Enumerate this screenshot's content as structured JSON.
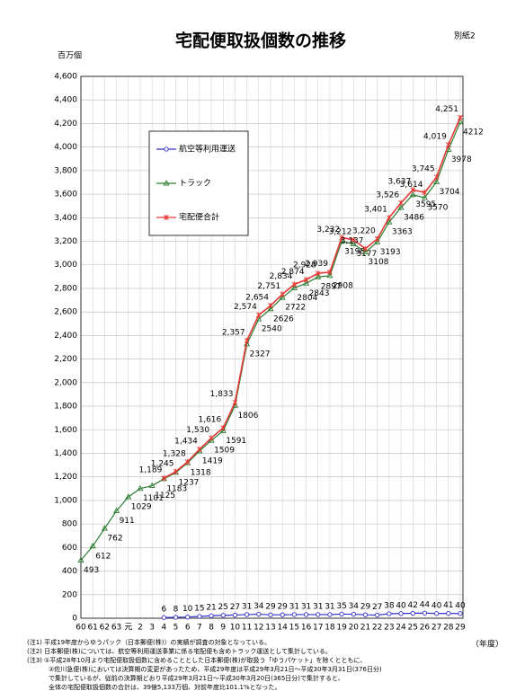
{
  "chart_data": {
    "type": "line",
    "title": "宅配便取扱個数の推移",
    "page_label": "別紙2",
    "y_axis_label": "百万個",
    "x_axis_label": "（年度）",
    "categories": [
      "60",
      "61",
      "62",
      "63",
      "元",
      "2",
      "3",
      "4",
      "5",
      "6",
      "7",
      "8",
      "9",
      "10",
      "11",
      "12",
      "13",
      "14",
      "15",
      "16",
      "17",
      "18",
      "19",
      "20",
      "21",
      "22",
      "23",
      "24",
      "25",
      "26",
      "27",
      "28",
      "29"
    ],
    "ylim": [
      0,
      4600
    ],
    "yticks": [
      0,
      200,
      400,
      600,
      800,
      {
        "value": 1000,
        "label": "1,000"
      },
      {
        "value": 1200,
        "label": "1,200"
      },
      {
        "value": 1400,
        "label": "1,400"
      },
      {
        "value": 1600,
        "label": "1,600"
      },
      {
        "value": 1800,
        "label": "1,800"
      },
      {
        "value": 2000,
        "label": "2,000"
      },
      {
        "value": 2200,
        "label": "2,200"
      },
      {
        "value": 2400,
        "label": "2,400"
      },
      {
        "value": 2600,
        "label": "2,600"
      },
      {
        "value": 2800,
        "label": "2,800"
      },
      {
        "value": 3000,
        "label": "3,000"
      },
      {
        "value": 3200,
        "label": "3,200"
      },
      {
        "value": 3400,
        "label": "3,400"
      },
      {
        "value": 3600,
        "label": "3,600"
      },
      {
        "value": 3800,
        "label": "3,800"
      },
      {
        "value": 4000,
        "label": "4,000"
      },
      {
        "value": 4200,
        "label": "4,200"
      },
      {
        "value": 4400,
        "label": "4,400"
      },
      {
        "value": 4600,
        "label": "4,600"
      }
    ],
    "grid": true,
    "legend_position": "upper left",
    "series": [
      {
        "name": "航空等利用運送",
        "color": "#3333cc",
        "marker": "circle",
        "values": [
          null,
          null,
          null,
          null,
          null,
          null,
          null,
          6,
          8,
          10,
          15,
          21,
          25,
          27,
          31,
          34,
          29,
          29,
          31,
          31,
          31,
          31,
          35,
          34,
          29,
          27,
          38,
          40,
          42,
          44,
          40,
          41,
          40
        ]
      },
      {
        "name": "トラック",
        "color": "#2e7d32",
        "marker": "triangle",
        "values": [
          493,
          612,
          762,
          911,
          1029,
          1101,
          1125,
          1183,
          1237,
          1318,
          1419,
          1509,
          1591,
          1806,
          2327,
          2540,
          2626,
          2722,
          2804,
          2843,
          2897,
          2908,
          3198,
          3177,
          3108,
          3193,
          3363,
          3486,
          3595,
          3570,
          3704,
          3978,
          4212
        ]
      },
      {
        "name": "宅配便合計",
        "color": "#e53935",
        "marker": "star",
        "values": [
          null,
          null,
          null,
          null,
          null,
          null,
          null,
          1189,
          1245,
          1328,
          1434,
          1530,
          1616,
          1833,
          2357,
          2574,
          2654,
          2751,
          2834,
          2874,
          2928,
          2939,
          3232,
          3212,
          3137,
          3220,
          3401,
          3526,
          3637,
          3614,
          3745,
          4019,
          4251
        ],
        "value_labels": [
          null,
          null,
          null,
          null,
          null,
          null,
          null,
          "1,189",
          "1,245",
          "1,328",
          "1,434",
          "1,530",
          "1,616",
          "1,833",
          "2,357",
          "2,574",
          "2,654",
          "2,751",
          "2,834",
          "2,874",
          "2,928",
          "2,939",
          "3,232",
          "3,212",
          "3,137",
          "3,220",
          "3,401",
          "3,526",
          "3,637",
          "3,614",
          "3,745",
          "4,019",
          "4,251"
        ]
      }
    ],
    "notes": [
      "(注1) 平成19年度からゆうパック（日本郵便(株)）の実績が調査の対象となっている。",
      "(注2) 日本郵便(株)については、航空等利用運送事業に係る宅配便も含めトラック運送として集計している。",
      "(注3) ①平成28年10月より宅配便取扱個数に含めることとした日本郵便(株)が取扱う「ゆうパケット」を除くとともに、",
      "②佐川急便(株)においては決算期の変更があったため、平成29年度は平成29年3月21日～平成30年3月31日(376日分)",
      "で集計しているが、従前の決算期どおり平成29年3月21日～平成30年3月20日(365日分)で集計すると、",
      "全体の宅配便取扱個数の合計は、39億5,133万個、対前年度比101.1%となった。"
    ]
  }
}
